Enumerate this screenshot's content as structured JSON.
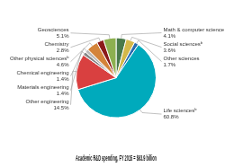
{
  "chart_data": {
    "type": "pie",
    "title": "Academic R&D spending, FY 2015 = $63.9 billion",
    "categories": [
      "Math & computer science",
      "Social sciencesᵇ",
      "Other sciences",
      "Life sciencesᵇ",
      "Other engineering",
      "Materials engineering",
      "Chemical engineering",
      "Other physical sciencesᵇ",
      "Chemistry",
      "Geosciences"
    ],
    "values": [
      4.1,
      3.6,
      1.7,
      60.8,
      14.5,
      1.4,
      1.4,
      4.6,
      2.8,
      5.1
    ],
    "value_labels": [
      "4.1%",
      "3.6%",
      "1.7%",
      "60.8%",
      "14.5%",
      "1.4%",
      "1.4%",
      "4.6%",
      "2.8%",
      "5.1%"
    ],
    "colors": [
      "#4A7A4A",
      "#D4B84A",
      "#2B6CB0",
      "#00AABC",
      "#D94040",
      "#888888",
      "#BBBBBB",
      "#D4843A",
      "#8B1A1A",
      "#8DB050"
    ],
    "data_labels": true
  }
}
